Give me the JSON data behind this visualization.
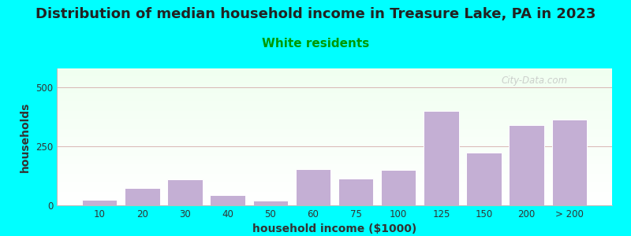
{
  "title": "Distribution of median household income in Treasure Lake, PA in 2023",
  "subtitle": "White residents",
  "xlabel": "household income ($1000)",
  "ylabel": "households",
  "bg_color": "#00FFFF",
  "bar_color": "#c4afd4",
  "bar_edge_color": "#ffffff",
  "categories": [
    "10",
    "20",
    "30",
    "40",
    "50",
    "60",
    "75",
    "100",
    "125",
    "150",
    "200",
    "> 200"
  ],
  "values": [
    25,
    75,
    110,
    45,
    20,
    155,
    115,
    150,
    400,
    225,
    340,
    365
  ],
  "ylim": [
    0,
    580
  ],
  "yticks": [
    0,
    250,
    500
  ],
  "title_fontsize": 13,
  "subtitle_fontsize": 11,
  "subtitle_color": "#009900",
  "axis_label_fontsize": 10,
  "tick_fontsize": 8.5,
  "watermark": "City-Data.com"
}
